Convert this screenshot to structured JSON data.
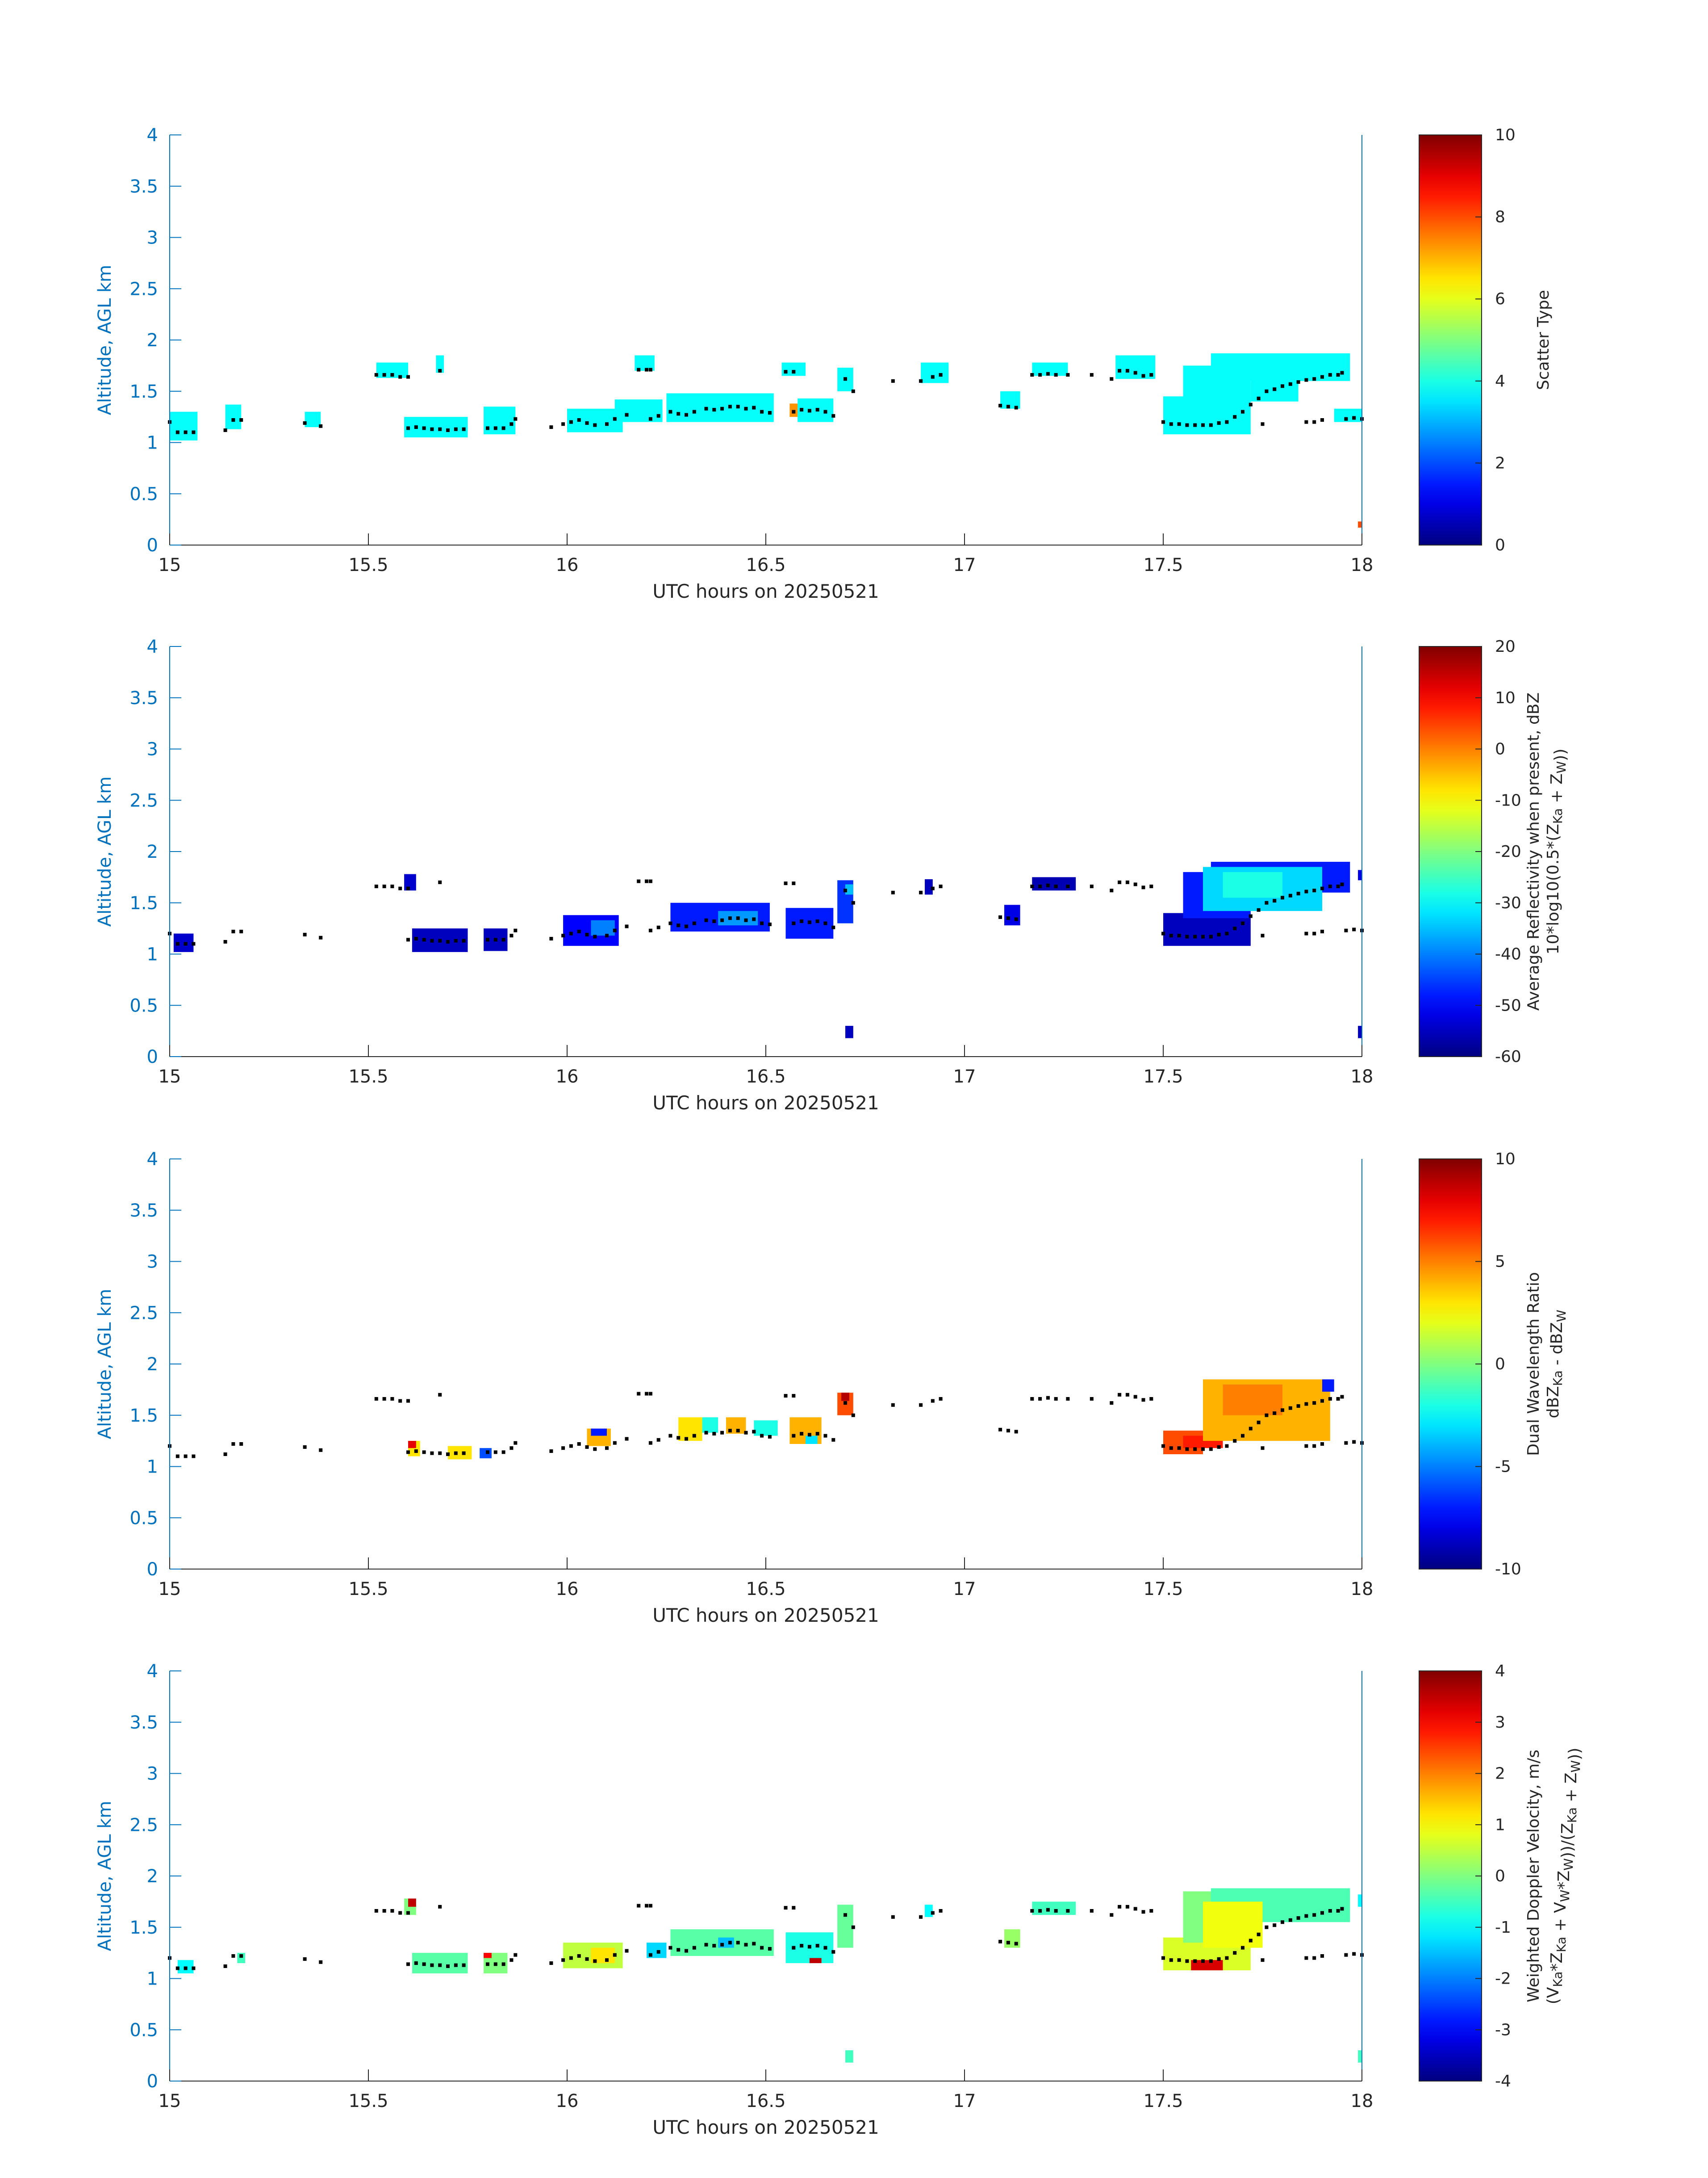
{
  "chart_data": [
    {
      "type": "heatmap",
      "panel": "scatter-type",
      "xlabel": "UTC hours on 20250521",
      "ylabel": "Altitude, AGL km",
      "xlim": [
        15,
        18
      ],
      "ylim": [
        0,
        4
      ],
      "xticks": [
        "15",
        "15.5",
        "16",
        "16.5",
        "17",
        "17.5",
        "18"
      ],
      "yticks": [
        "0",
        "0.5",
        "1",
        "1.5",
        "2",
        "2.5",
        "3",
        "3.5",
        "4"
      ],
      "colorbar": {
        "label_lines": [
          "Scatter Type"
        ],
        "range": [
          0,
          10
        ],
        "ticks": [
          "0",
          "2",
          "4",
          "6",
          "8",
          "10"
        ]
      },
      "blocks": [
        {
          "x0": 15.0,
          "x1": 15.07,
          "y0": 1.02,
          "y1": 1.3,
          "v": 3.8
        },
        {
          "x0": 15.14,
          "x1": 15.18,
          "y0": 1.13,
          "y1": 1.37,
          "v": 3.8
        },
        {
          "x0": 15.34,
          "x1": 15.38,
          "y0": 1.15,
          "y1": 1.3,
          "v": 3.8
        },
        {
          "x0": 15.52,
          "x1": 15.6,
          "y0": 1.63,
          "y1": 1.78,
          "v": 3.8
        },
        {
          "x0": 15.67,
          "x1": 15.69,
          "y0": 1.68,
          "y1": 1.85,
          "v": 3.8
        },
        {
          "x0": 15.59,
          "x1": 15.75,
          "y0": 1.05,
          "y1": 1.25,
          "v": 3.8
        },
        {
          "x0": 15.79,
          "x1": 15.87,
          "y0": 1.08,
          "y1": 1.35,
          "v": 3.8
        },
        {
          "x0": 16.0,
          "x1": 16.14,
          "y0": 1.1,
          "y1": 1.33,
          "v": 3.8
        },
        {
          "x0": 16.12,
          "x1": 16.24,
          "y0": 1.2,
          "y1": 1.42,
          "v": 3.8
        },
        {
          "x0": 16.17,
          "x1": 16.22,
          "y0": 1.7,
          "y1": 1.85,
          "v": 3.8
        },
        {
          "x0": 16.25,
          "x1": 16.52,
          "y0": 1.2,
          "y1": 1.48,
          "v": 3.8
        },
        {
          "x0": 16.54,
          "x1": 16.6,
          "y0": 1.65,
          "y1": 1.78,
          "v": 3.8
        },
        {
          "x0": 16.58,
          "x1": 16.67,
          "y0": 1.2,
          "y1": 1.43,
          "v": 3.8
        },
        {
          "x0": 16.56,
          "x1": 16.58,
          "y0": 1.25,
          "y1": 1.38,
          "v": 7.3
        },
        {
          "x0": 16.68,
          "x1": 16.72,
          "y0": 1.5,
          "y1": 1.73,
          "v": 3.8
        },
        {
          "x0": 16.89,
          "x1": 16.96,
          "y0": 1.58,
          "y1": 1.78,
          "v": 3.8
        },
        {
          "x0": 17.09,
          "x1": 17.14,
          "y0": 1.33,
          "y1": 1.5,
          "v": 3.8
        },
        {
          "x0": 17.17,
          "x1": 17.26,
          "y0": 1.65,
          "y1": 1.78,
          "v": 3.8
        },
        {
          "x0": 17.38,
          "x1": 17.48,
          "y0": 1.62,
          "y1": 1.85,
          "v": 3.8
        },
        {
          "x0": 17.5,
          "x1": 17.72,
          "y0": 1.08,
          "y1": 1.45,
          "v": 3.8
        },
        {
          "x0": 17.55,
          "x1": 17.72,
          "y0": 1.35,
          "y1": 1.75,
          "v": 3.8
        },
        {
          "x0": 17.62,
          "x1": 17.97,
          "y0": 1.6,
          "y1": 1.87,
          "v": 3.8
        },
        {
          "x0": 17.72,
          "x1": 17.84,
          "y0": 1.4,
          "y1": 1.65,
          "v": 3.8
        },
        {
          "x0": 17.93,
          "x1": 18.0,
          "y0": 1.2,
          "y1": 1.33,
          "v": 3.8
        },
        {
          "x0": 17.99,
          "x1": 18.0,
          "y0": 0.17,
          "y1": 0.23,
          "v": 8.0
        }
      ]
    },
    {
      "type": "heatmap",
      "panel": "average-reflectivity",
      "xlabel": "UTC hours on 20250521",
      "ylabel": "Altitude, AGL km",
      "xlim": [
        15,
        18
      ],
      "ylim": [
        0,
        4
      ],
      "xticks": [
        "15",
        "15.5",
        "16",
        "16.5",
        "17",
        "17.5",
        "18"
      ],
      "yticks": [
        "0",
        "0.5",
        "1",
        "1.5",
        "2",
        "2.5",
        "3",
        "3.5",
        "4"
      ],
      "colorbar": {
        "label_lines": [
          "Average Reflectivity when present, dBZ",
          "10*log10(0.5*(Z",
          "Ka",
          " + Z",
          "W",
          "))"
        ],
        "range": [
          -60,
          20
        ],
        "ticks": [
          "-60",
          "-50",
          "-40",
          "-30",
          "-20",
          "-10",
          "0",
          "10",
          "20"
        ]
      },
      "blocks": [
        {
          "x0": 15.01,
          "x1": 15.06,
          "y0": 1.02,
          "y1": 1.2,
          "v": -54
        },
        {
          "x0": 15.59,
          "x1": 15.62,
          "y0": 1.62,
          "y1": 1.78,
          "v": -54
        },
        {
          "x0": 15.61,
          "x1": 15.75,
          "y0": 1.02,
          "y1": 1.25,
          "v": -55
        },
        {
          "x0": 15.79,
          "x1": 15.85,
          "y0": 1.03,
          "y1": 1.25,
          "v": -55
        },
        {
          "x0": 15.99,
          "x1": 16.13,
          "y0": 1.08,
          "y1": 1.38,
          "v": -50
        },
        {
          "x0": 16.06,
          "x1": 16.12,
          "y0": 1.18,
          "y1": 1.33,
          "v": -40
        },
        {
          "x0": 16.26,
          "x1": 16.51,
          "y0": 1.22,
          "y1": 1.5,
          "v": -48
        },
        {
          "x0": 16.38,
          "x1": 16.48,
          "y0": 1.28,
          "y1": 1.42,
          "v": -38
        },
        {
          "x0": 16.55,
          "x1": 16.67,
          "y0": 1.15,
          "y1": 1.45,
          "v": -48
        },
        {
          "x0": 16.68,
          "x1": 16.72,
          "y0": 1.3,
          "y1": 1.72,
          "v": -46
        },
        {
          "x0": 16.7,
          "x1": 16.72,
          "y0": 1.58,
          "y1": 1.68,
          "v": -35
        },
        {
          "x0": 16.7,
          "x1": 16.72,
          "y0": 0.18,
          "y1": 0.3,
          "v": -55
        },
        {
          "x0": 16.9,
          "x1": 16.92,
          "y0": 1.58,
          "y1": 1.73,
          "v": -55
        },
        {
          "x0": 17.1,
          "x1": 17.14,
          "y0": 1.28,
          "y1": 1.48,
          "v": -52
        },
        {
          "x0": 17.17,
          "x1": 17.28,
          "y0": 1.62,
          "y1": 1.75,
          "v": -56
        },
        {
          "x0": 17.5,
          "x1": 17.72,
          "y0": 1.08,
          "y1": 1.4,
          "v": -55
        },
        {
          "x0": 17.55,
          "x1": 17.72,
          "y0": 1.35,
          "y1": 1.8,
          "v": -48
        },
        {
          "x0": 17.62,
          "x1": 17.97,
          "y0": 1.6,
          "y1": 1.9,
          "v": -48
        },
        {
          "x0": 17.6,
          "x1": 17.9,
          "y0": 1.42,
          "y1": 1.85,
          "v": -33
        },
        {
          "x0": 17.65,
          "x1": 17.8,
          "y0": 1.55,
          "y1": 1.8,
          "v": -28
        },
        {
          "x0": 17.99,
          "x1": 18.0,
          "y0": 0.18,
          "y1": 0.3,
          "v": -55
        },
        {
          "x0": 17.99,
          "x1": 18.0,
          "y0": 1.72,
          "y1": 1.82,
          "v": -52
        }
      ]
    },
    {
      "type": "heatmap",
      "panel": "dual-wavelength-ratio",
      "xlabel": "UTC hours on 20250521",
      "ylabel": "Altitude, AGL km",
      "xlim": [
        15,
        18
      ],
      "ylim": [
        0,
        4
      ],
      "xticks": [
        "15",
        "15.5",
        "16",
        "16.5",
        "17",
        "17.5",
        "18"
      ],
      "yticks": [
        "0",
        "0.5",
        "1",
        "1.5",
        "2",
        "2.5",
        "3",
        "3.5",
        "4"
      ],
      "colorbar": {
        "label_lines": [
          "Dual Wavelength Ratio",
          "dBZ",
          "Ka",
          " - dBZ",
          "W"
        ],
        "range": [
          -10,
          10
        ],
        "ticks": [
          "-10",
          "-5",
          "0",
          "5",
          "10"
        ]
      },
      "blocks": [
        {
          "x0": 15.6,
          "x1": 15.63,
          "y0": 1.1,
          "y1": 1.25,
          "v": 3
        },
        {
          "x0": 15.6,
          "x1": 15.62,
          "y0": 1.18,
          "y1": 1.25,
          "v": 8
        },
        {
          "x0": 15.7,
          "x1": 15.76,
          "y0": 1.07,
          "y1": 1.2,
          "v": 3
        },
        {
          "x0": 15.78,
          "x1": 15.81,
          "y0": 1.08,
          "y1": 1.18,
          "v": -6
        },
        {
          "x0": 16.05,
          "x1": 16.11,
          "y0": 1.2,
          "y1": 1.37,
          "v": 4
        },
        {
          "x0": 16.06,
          "x1": 16.1,
          "y0": 1.3,
          "y1": 1.37,
          "v": -7
        },
        {
          "x0": 16.28,
          "x1": 16.34,
          "y0": 1.25,
          "y1": 1.48,
          "v": 3
        },
        {
          "x0": 16.34,
          "x1": 16.38,
          "y0": 1.33,
          "y1": 1.48,
          "v": -2
        },
        {
          "x0": 16.4,
          "x1": 16.45,
          "y0": 1.32,
          "y1": 1.48,
          "v": 4
        },
        {
          "x0": 16.47,
          "x1": 16.53,
          "y0": 1.3,
          "y1": 1.45,
          "v": -2
        },
        {
          "x0": 16.56,
          "x1": 16.64,
          "y0": 1.22,
          "y1": 1.48,
          "v": 4
        },
        {
          "x0": 16.6,
          "x1": 16.63,
          "y0": 1.22,
          "y1": 1.3,
          "v": -3
        },
        {
          "x0": 16.68,
          "x1": 16.72,
          "y0": 1.5,
          "y1": 1.72,
          "v": 6
        },
        {
          "x0": 16.69,
          "x1": 16.71,
          "y0": 1.64,
          "y1": 1.72,
          "v": 9
        },
        {
          "x0": 17.5,
          "x1": 17.6,
          "y0": 1.12,
          "y1": 1.35,
          "v": 6
        },
        {
          "x0": 17.55,
          "x1": 17.65,
          "y0": 1.18,
          "y1": 1.3,
          "v": 7
        },
        {
          "x0": 17.6,
          "x1": 17.92,
          "y0": 1.25,
          "y1": 1.85,
          "v": 4
        },
        {
          "x0": 17.65,
          "x1": 17.8,
          "y0": 1.5,
          "y1": 1.8,
          "v": 5
        },
        {
          "x0": 17.9,
          "x1": 17.93,
          "y0": 1.73,
          "y1": 1.85,
          "v": -7
        }
      ]
    },
    {
      "type": "heatmap",
      "panel": "weighted-doppler-velocity",
      "xlabel": "UTC hours on 20250521",
      "ylabel": "Altitude, AGL km",
      "xlim": [
        15,
        18
      ],
      "ylim": [
        0,
        4
      ],
      "xticks": [
        "15",
        "15.5",
        "16",
        "16.5",
        "17",
        "17.5",
        "18"
      ],
      "yticks": [
        "0",
        "0.5",
        "1",
        "1.5",
        "2",
        "2.5",
        "3",
        "3.5",
        "4"
      ],
      "colorbar": {
        "label_lines": [
          "Weighted Doppler Velocity, m/s",
          "(V",
          "Ka",
          "*Z",
          "Ka",
          " + V",
          "W",
          "*Z",
          "W",
          "))/(Z",
          "Ka",
          " + Z",
          "W",
          "))"
        ],
        "range": [
          -4,
          4
        ],
        "ticks": [
          "-4",
          "-3",
          "-2",
          "-1",
          "0",
          "1",
          "2",
          "3",
          "4"
        ]
      },
      "blocks": [
        {
          "x0": 15.02,
          "x1": 15.06,
          "y0": 1.05,
          "y1": 1.18,
          "v": -1
        },
        {
          "x0": 15.17,
          "x1": 15.19,
          "y0": 1.15,
          "y1": 1.25,
          "v": -0.5
        },
        {
          "x0": 15.59,
          "x1": 15.62,
          "y0": 1.62,
          "y1": 1.78,
          "v": 0
        },
        {
          "x0": 15.6,
          "x1": 15.62,
          "y0": 1.7,
          "y1": 1.78,
          "v": 3.5
        },
        {
          "x0": 15.61,
          "x1": 15.75,
          "y0": 1.05,
          "y1": 1.25,
          "v": -0.3
        },
        {
          "x0": 15.79,
          "x1": 15.85,
          "y0": 1.05,
          "y1": 1.25,
          "v": 0
        },
        {
          "x0": 15.79,
          "x1": 15.81,
          "y0": 1.2,
          "y1": 1.25,
          "v": 3
        },
        {
          "x0": 15.99,
          "x1": 16.14,
          "y0": 1.1,
          "y1": 1.35,
          "v": 0.5
        },
        {
          "x0": 16.06,
          "x1": 16.12,
          "y0": 1.15,
          "y1": 1.3,
          "v": 1.2
        },
        {
          "x0": 16.2,
          "x1": 16.25,
          "y0": 1.2,
          "y1": 1.35,
          "v": -1.3
        },
        {
          "x0": 16.26,
          "x1": 16.52,
          "y0": 1.22,
          "y1": 1.48,
          "v": -0.3
        },
        {
          "x0": 16.38,
          "x1": 16.42,
          "y0": 1.3,
          "y1": 1.4,
          "v": -1.5
        },
        {
          "x0": 16.55,
          "x1": 16.67,
          "y0": 1.15,
          "y1": 1.45,
          "v": -0.8
        },
        {
          "x0": 16.61,
          "x1": 16.64,
          "y0": 1.15,
          "y1": 1.2,
          "v": 3.5
        },
        {
          "x0": 16.68,
          "x1": 16.72,
          "y0": 1.3,
          "y1": 1.72,
          "v": -0.2
        },
        {
          "x0": 16.7,
          "x1": 16.72,
          "y0": 0.18,
          "y1": 0.3,
          "v": -0.5
        },
        {
          "x0": 16.9,
          "x1": 16.92,
          "y0": 1.6,
          "y1": 1.72,
          "v": -1
        },
        {
          "x0": 17.1,
          "x1": 17.14,
          "y0": 1.3,
          "y1": 1.48,
          "v": 0.2
        },
        {
          "x0": 17.17,
          "x1": 17.28,
          "y0": 1.62,
          "y1": 1.75,
          "v": -0.5
        },
        {
          "x0": 17.5,
          "x1": 17.72,
          "y0": 1.08,
          "y1": 1.4,
          "v": 0.7
        },
        {
          "x0": 17.55,
          "x1": 17.72,
          "y0": 1.35,
          "y1": 1.85,
          "v": 0
        },
        {
          "x0": 17.62,
          "x1": 17.97,
          "y0": 1.55,
          "y1": 1.88,
          "v": -0.4
        },
        {
          "x0": 17.6,
          "x1": 17.75,
          "y0": 1.3,
          "y1": 1.75,
          "v": 0.9
        },
        {
          "x0": 17.57,
          "x1": 17.65,
          "y0": 1.08,
          "y1": 1.18,
          "v": 3.3
        },
        {
          "x0": 17.99,
          "x1": 18.0,
          "y0": 0.18,
          "y1": 0.3,
          "v": -0.5
        },
        {
          "x0": 17.99,
          "x1": 18.0,
          "y0": 1.7,
          "y1": 1.82,
          "v": -1
        }
      ]
    }
  ],
  "markers": [
    [
      15.0,
      1.2
    ],
    [
      15.02,
      1.1
    ],
    [
      15.04,
      1.1
    ],
    [
      15.06,
      1.1
    ],
    [
      15.14,
      1.12
    ],
    [
      15.16,
      1.22
    ],
    [
      15.18,
      1.22
    ],
    [
      15.34,
      1.19
    ],
    [
      15.38,
      1.16
    ],
    [
      15.52,
      1.66
    ],
    [
      15.54,
      1.66
    ],
    [
      15.56,
      1.66
    ],
    [
      15.58,
      1.64
    ],
    [
      15.6,
      1.64
    ],
    [
      15.6,
      1.14
    ],
    [
      15.62,
      1.15
    ],
    [
      15.64,
      1.14
    ],
    [
      15.66,
      1.13
    ],
    [
      15.68,
      1.13
    ],
    [
      15.7,
      1.12
    ],
    [
      15.72,
      1.13
    ],
    [
      15.74,
      1.13
    ],
    [
      15.68,
      1.7
    ],
    [
      15.8,
      1.14
    ],
    [
      15.82,
      1.14
    ],
    [
      15.84,
      1.14
    ],
    [
      15.86,
      1.18
    ],
    [
      15.87,
      1.23
    ],
    [
      15.96,
      1.15
    ],
    [
      15.99,
      1.18
    ],
    [
      16.01,
      1.2
    ],
    [
      16.03,
      1.22
    ],
    [
      16.05,
      1.19
    ],
    [
      16.07,
      1.17
    ],
    [
      16.1,
      1.18
    ],
    [
      16.12,
      1.23
    ],
    [
      16.15,
      1.27
    ],
    [
      16.18,
      1.71
    ],
    [
      16.2,
      1.71
    ],
    [
      16.21,
      1.71
    ],
    [
      16.21,
      1.23
    ],
    [
      16.23,
      1.26
    ],
    [
      16.26,
      1.3
    ],
    [
      16.28,
      1.28
    ],
    [
      16.3,
      1.27
    ],
    [
      16.32,
      1.3
    ],
    [
      16.35,
      1.33
    ],
    [
      16.37,
      1.32
    ],
    [
      16.39,
      1.33
    ],
    [
      16.41,
      1.35
    ],
    [
      16.43,
      1.35
    ],
    [
      16.45,
      1.33
    ],
    [
      16.47,
      1.34
    ],
    [
      16.49,
      1.3
    ],
    [
      16.51,
      1.29
    ],
    [
      16.55,
      1.69
    ],
    [
      16.57,
      1.69
    ],
    [
      16.57,
      1.3
    ],
    [
      16.59,
      1.32
    ],
    [
      16.61,
      1.31
    ],
    [
      16.63,
      1.32
    ],
    [
      16.65,
      1.3
    ],
    [
      16.67,
      1.26
    ],
    [
      16.7,
      1.62
    ],
    [
      16.72,
      1.5
    ],
    [
      16.82,
      1.6
    ],
    [
      16.89,
      1.6
    ],
    [
      16.92,
      1.64
    ],
    [
      16.94,
      1.66
    ],
    [
      17.09,
      1.36
    ],
    [
      17.11,
      1.35
    ],
    [
      17.13,
      1.34
    ],
    [
      17.17,
      1.66
    ],
    [
      17.19,
      1.66
    ],
    [
      17.21,
      1.67
    ],
    [
      17.23,
      1.66
    ],
    [
      17.26,
      1.66
    ],
    [
      17.32,
      1.66
    ],
    [
      17.37,
      1.62
    ],
    [
      17.39,
      1.7
    ],
    [
      17.41,
      1.7
    ],
    [
      17.43,
      1.68
    ],
    [
      17.45,
      1.65
    ],
    [
      17.47,
      1.66
    ],
    [
      17.5,
      1.2
    ],
    [
      17.52,
      1.18
    ],
    [
      17.54,
      1.18
    ],
    [
      17.56,
      1.17
    ],
    [
      17.58,
      1.17
    ],
    [
      17.6,
      1.17
    ],
    [
      17.62,
      1.17
    ],
    [
      17.64,
      1.19
    ],
    [
      17.66,
      1.2
    ],
    [
      17.68,
      1.25
    ],
    [
      17.7,
      1.3
    ],
    [
      17.72,
      1.37
    ],
    [
      17.74,
      1.43
    ],
    [
      17.76,
      1.5
    ],
    [
      17.78,
      1.52
    ],
    [
      17.8,
      1.55
    ],
    [
      17.82,
      1.57
    ],
    [
      17.84,
      1.59
    ],
    [
      17.86,
      1.61
    ],
    [
      17.88,
      1.62
    ],
    [
      17.9,
      1.64
    ],
    [
      17.92,
      1.66
    ],
    [
      17.94,
      1.66
    ],
    [
      17.95,
      1.68
    ],
    [
      17.75,
      1.18
    ],
    [
      17.86,
      1.2
    ],
    [
      17.88,
      1.2
    ],
    [
      17.9,
      1.22
    ],
    [
      17.96,
      1.23
    ],
    [
      17.98,
      1.24
    ],
    [
      18.0,
      1.23
    ]
  ]
}
